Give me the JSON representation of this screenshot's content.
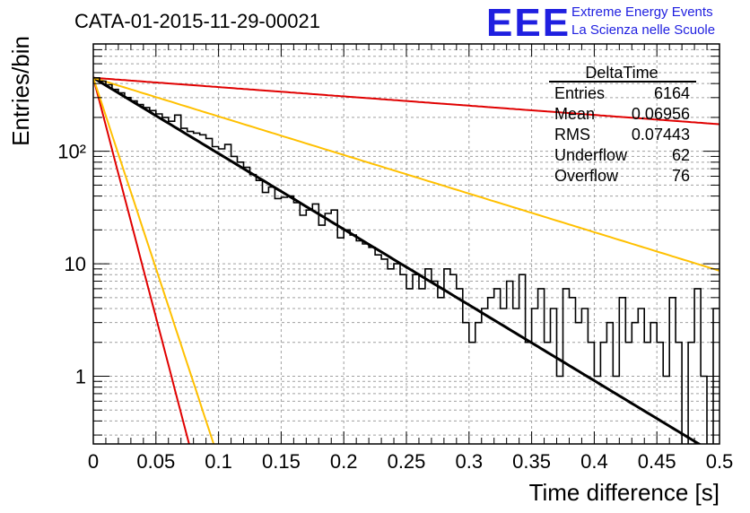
{
  "title": "CATA-01-2015-11-29-00021",
  "logo": {
    "mark": "EEE",
    "line1": "Extreme Energy Events",
    "line2": "La Scienza nelle Scuole",
    "color": "#1f1fe0"
  },
  "stats": {
    "name": "DeltaTime",
    "rows": [
      {
        "label": "Entries",
        "value": "6164"
      },
      {
        "label": "Mean",
        "value": "0.06956"
      },
      {
        "label": "RMS",
        "value": "0.07443"
      },
      {
        "label": "Underflow",
        "value": "62"
      },
      {
        "label": "Overflow",
        "value": "76"
      }
    ]
  },
  "chart_data": {
    "type": "line",
    "xlabel": "Time difference [s]",
    "ylabel": "Entries/bin",
    "xlim": [
      0,
      0.5
    ],
    "ylim": [
      0.25,
      900
    ],
    "yscale": "log",
    "grid": true,
    "x_ticks": [
      "0",
      "0.05",
      "0.1",
      "0.15",
      "0.2",
      "0.25",
      "0.3",
      "0.35",
      "0.4",
      "0.45",
      "0.5"
    ],
    "y_ticks": [
      {
        "label": "1",
        "value": 1
      },
      {
        "label": "10",
        "value": 10
      },
      {
        "label": "10²",
        "value": 100
      }
    ],
    "histogram": {
      "bin_width": 0.005,
      "color": "#000000",
      "values": [
        450,
        420,
        390,
        355,
        330,
        300,
        280,
        260,
        245,
        230,
        215,
        200,
        185,
        210,
        160,
        150,
        145,
        140,
        130,
        110,
        105,
        115,
        90,
        80,
        72,
        62,
        55,
        43,
        48,
        38,
        39,
        40,
        35,
        27,
        30,
        34,
        22,
        28,
        30,
        17,
        20,
        18,
        16,
        15,
        14,
        12,
        11,
        9,
        10,
        8,
        6,
        8,
        6,
        9,
        7,
        5,
        9,
        8,
        6,
        3,
        2,
        3,
        4,
        5,
        6,
        4,
        7,
        4,
        8,
        2,
        4,
        6,
        2,
        4,
        1,
        6,
        5,
        3,
        4,
        2,
        1,
        2,
        3,
        1,
        5,
        2,
        3,
        4,
        2,
        3,
        2,
        1,
        5,
        2,
        0.2,
        2,
        6,
        1,
        0.2,
        4
      ]
    },
    "series": [
      {
        "kind": "fit",
        "color": "#000000",
        "width": 3,
        "amplitude": 450,
        "slope": -15.5
      },
      {
        "kind": "band",
        "color": "#e00000",
        "width": 2,
        "amplitude": 450,
        "slope": -1.9
      },
      {
        "kind": "band",
        "color": "#ffc000",
        "width": 2,
        "amplitude": 450,
        "slope": -7.9
      },
      {
        "kind": "band",
        "color": "#e00000",
        "width": 2,
        "amplitude": 450,
        "slope": -98
      },
      {
        "kind": "band",
        "color": "#ffc000",
        "width": 2,
        "amplitude": 450,
        "slope": -78
      }
    ]
  }
}
